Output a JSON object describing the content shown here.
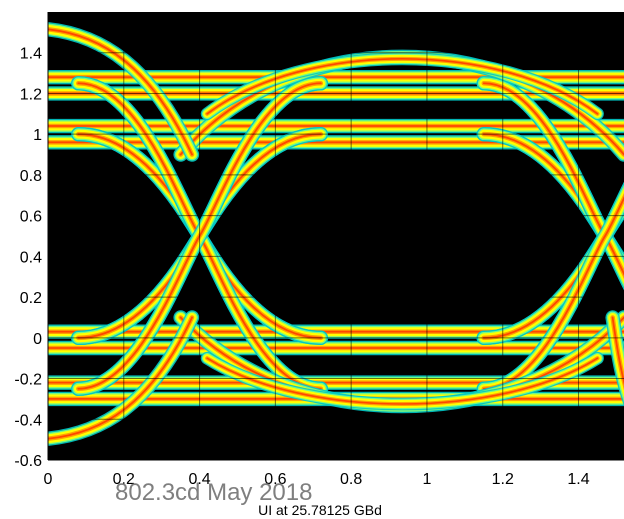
{
  "chart_data": {
    "type": "eye-diagram",
    "title": "",
    "xlabel": "UI at 25.78125 GBd",
    "ylabel": "",
    "xlim": [
      0,
      1.52
    ],
    "ylim": [
      -0.6,
      1.6
    ],
    "xticks": [
      0,
      0.2,
      0.4,
      0.6,
      0.8,
      1,
      1.2,
      1.4
    ],
    "xtick_labels": [
      "0",
      "0.2",
      "0.4",
      "0.6",
      "0.8",
      "1",
      "1.2",
      "1.4"
    ],
    "yticks": [
      -0.6,
      -0.4,
      -0.2,
      0,
      0.2,
      0.4,
      0.6,
      0.8,
      1,
      1.2,
      1.4
    ],
    "ytick_labels": [
      "-0.6",
      "-0.4",
      "-0.2",
      "0",
      "0.2",
      "0.4",
      "0.6",
      "0.8",
      "1",
      "1.2",
      "1.4"
    ],
    "grid": true,
    "background_color": "#000000",
    "colormap": [
      "#00c8c8",
      "#7fff7f",
      "#ffff00",
      "#ffa000",
      "#ff3000"
    ],
    "levels": {
      "high": [
        0.96,
        1.04,
        1.2,
        1.28
      ],
      "low": [
        -0.05,
        0.03,
        -0.22,
        -0.3
      ],
      "overshoot_top": 1.52,
      "undershoot_bottom": -0.5
    },
    "crossings": [
      {
        "x": 0.4,
        "y": 0.5
      },
      {
        "x": 1.47,
        "y": 0.5
      }
    ]
  },
  "footer": {
    "text": "802.3cd May 2018"
  }
}
